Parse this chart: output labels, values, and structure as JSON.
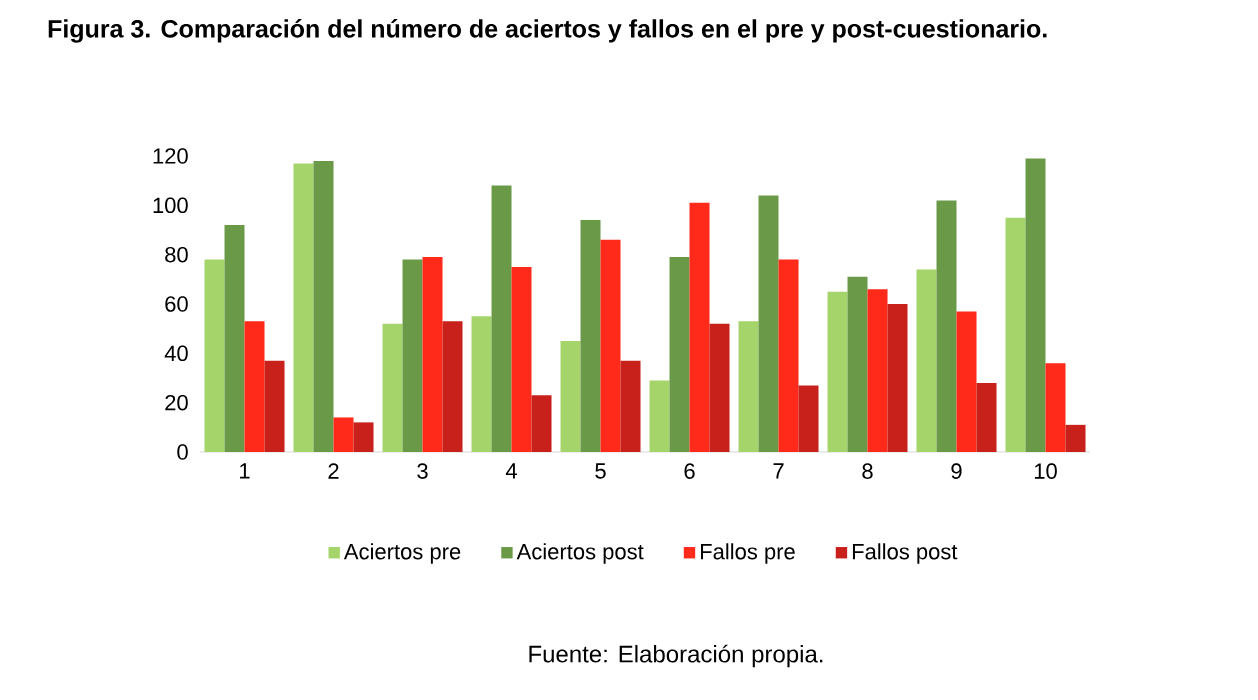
{
  "chart_data": {
    "type": "bar",
    "title": "Figura 3. Comparación del número de aciertos y fallos en el pre y post-cuestionario.",
    "categories": [
      "1",
      "2",
      "3",
      "4",
      "5",
      "6",
      "7",
      "8",
      "9",
      "10"
    ],
    "series": [
      {
        "name": "Aciertos pre",
        "color": "#a5d46a",
        "values": [
          78,
          117,
          52,
          55,
          45,
          29,
          53,
          65,
          74,
          95
        ]
      },
      {
        "name": "Aciertos post",
        "color": "#6a9a48",
        "values": [
          92,
          118,
          78,
          108,
          94,
          79,
          104,
          71,
          102,
          119
        ]
      },
      {
        "name": "Fallos pre",
        "color": "#ff2a1a",
        "values": [
          53,
          14,
          79,
          75,
          86,
          101,
          78,
          66,
          57,
          36
        ]
      },
      {
        "name": "Fallos post",
        "color": "#c8201a",
        "values": [
          37,
          12,
          53,
          23,
          37,
          52,
          27,
          60,
          28,
          11
        ]
      }
    ],
    "ylim": [
      0,
      120
    ],
    "yticks": [
      0,
      20,
      40,
      60,
      80,
      100,
      120
    ],
    "grid": false,
    "legend": "bottom",
    "annotations": [
      "Fuente: Elaboración propia."
    ]
  }
}
